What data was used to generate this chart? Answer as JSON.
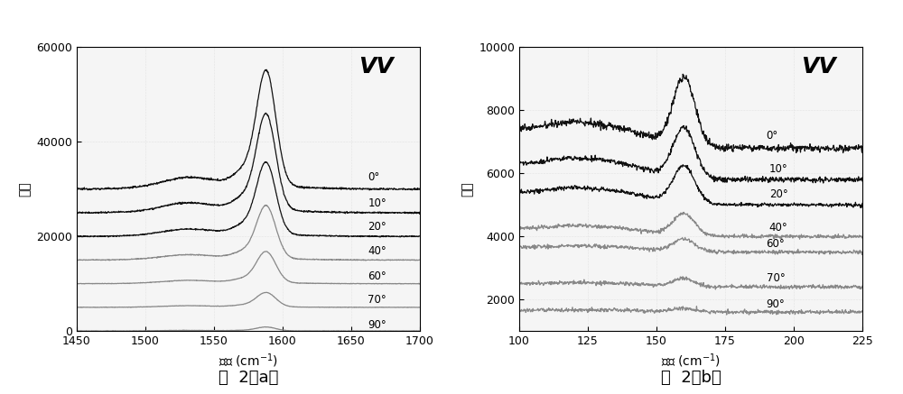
{
  "fig_a": {
    "title": "VV",
    "xlabel": "频移（cm⁻¹）",
    "ylabel": "强度",
    "xlim": [
      1450,
      1700
    ],
    "ylim": [
      0,
      60000
    ],
    "yticks": [
      0,
      20000,
      40000,
      60000
    ],
    "xticks": [
      1450,
      1500,
      1550,
      1600,
      1650,
      1700
    ],
    "labels": [
      "0°",
      "10°",
      "20°",
      "40°",
      "60°",
      "70°",
      "90°"
    ],
    "colors": [
      "#111111",
      "#111111",
      "#111111",
      "#888888",
      "#888888",
      "#888888",
      "#888888"
    ],
    "peak_heights": [
      24000,
      20000,
      15000,
      11000,
      6500,
      3000,
      800
    ],
    "peak2_heights": [
      3500,
      3000,
      2200,
      1600,
      1000,
      500,
      200
    ],
    "base_levels": [
      30000,
      25000,
      20000,
      15000,
      10000,
      5000,
      0
    ],
    "label_y_offsets": [
      1200,
      800,
      800,
      600,
      400,
      300,
      100
    ]
  },
  "fig_b": {
    "title": "VV",
    "xlabel": "频移（cm⁻¹）",
    "ylabel": "强度",
    "xlim": [
      100,
      225
    ],
    "ylim": [
      1000,
      10000
    ],
    "yticks": [
      2000,
      4000,
      6000,
      8000,
      10000
    ],
    "xticks": [
      100,
      125,
      150,
      175,
      200,
      225
    ],
    "labels": [
      "0°",
      "10°",
      "20°",
      "40°",
      "60°",
      "70°",
      "90°"
    ],
    "colors": [
      "#111111",
      "#111111",
      "#111111",
      "#888888",
      "#888888",
      "#888888",
      "#888888"
    ],
    "peak_heights": [
      2200,
      1600,
      1200,
      700,
      400,
      250,
      120
    ],
    "base_levels": [
      6800,
      5800,
      5000,
      4000,
      3500,
      2400,
      1600
    ],
    "broad_heights": [
      600,
      500,
      400,
      250,
      150,
      100,
      50
    ]
  },
  "caption_a": "图  2（a）",
  "caption_b": "图  2（b）"
}
